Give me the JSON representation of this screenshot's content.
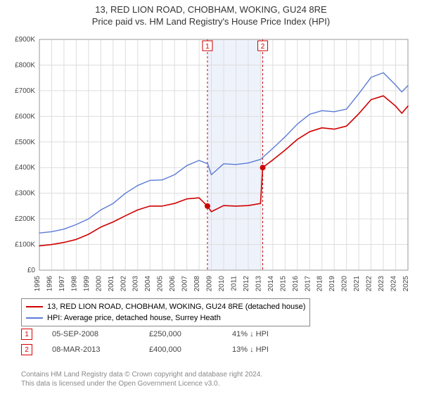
{
  "title": "13, RED LION ROAD, CHOBHAM, WOKING, GU24 8RE",
  "subtitle": "Price paid vs. HM Land Registry's House Price Index (HPI)",
  "chart": {
    "type": "line",
    "background_color": "#ffffff",
    "grid_color": "#dddddd",
    "x_years": [
      1995,
      1996,
      1997,
      1998,
      1999,
      2000,
      2001,
      2002,
      2003,
      2004,
      2005,
      2006,
      2007,
      2008,
      2009,
      2010,
      2011,
      2012,
      2013,
      2014,
      2015,
      2016,
      2017,
      2018,
      2019,
      2020,
      2021,
      2022,
      2023,
      2024,
      2025
    ],
    "y_min": 0,
    "y_max": 900000,
    "y_step": 100000,
    "y_labels": [
      "£0",
      "£100K",
      "£200K",
      "£300K",
      "£400K",
      "£500K",
      "£600K",
      "£700K",
      "£800K",
      "£900K"
    ],
    "shaded_band": {
      "x_start": 2008.7,
      "x_end": 2013.2,
      "fill": "#eef2fb"
    },
    "markers": [
      {
        "id": "1",
        "x": 2008.68,
        "y": 250000,
        "color": "#d00000"
      },
      {
        "id": "2",
        "x": 2013.18,
        "y": 400000,
        "color": "#d00000"
      }
    ],
    "marker_style": {
      "radius": 4,
      "line_dash": "3,3",
      "badge_border": "#d00000",
      "badge_fill": "#ffffff",
      "badge_text": "#d00000",
      "badge_size": 14
    },
    "series": [
      {
        "name": "property",
        "label": "13, RED LION ROAD, CHOBHAM, WOKING, GU24 8RE (detached house)",
        "color": "#d00000",
        "line_width": 1.6,
        "points": [
          [
            1995,
            95000
          ],
          [
            1996,
            100000
          ],
          [
            1997,
            108000
          ],
          [
            1998,
            120000
          ],
          [
            1999,
            140000
          ],
          [
            2000,
            168000
          ],
          [
            2001,
            188000
          ],
          [
            2002,
            212000
          ],
          [
            2003,
            235000
          ],
          [
            2004,
            250000
          ],
          [
            2005,
            250000
          ],
          [
            2006,
            260000
          ],
          [
            2007,
            278000
          ],
          [
            2008,
            282000
          ],
          [
            2008.68,
            250000
          ],
          [
            2009,
            228000
          ],
          [
            2010,
            252000
          ],
          [
            2011,
            250000
          ],
          [
            2012,
            252000
          ],
          [
            2013,
            260000
          ],
          [
            2013.18,
            400000
          ],
          [
            2014,
            430000
          ],
          [
            2015,
            468000
          ],
          [
            2016,
            510000
          ],
          [
            2017,
            540000
          ],
          [
            2018,
            555000
          ],
          [
            2019,
            550000
          ],
          [
            2020,
            562000
          ],
          [
            2021,
            610000
          ],
          [
            2022,
            665000
          ],
          [
            2023,
            680000
          ],
          [
            2024,
            640000
          ],
          [
            2024.5,
            612000
          ],
          [
            2025,
            640000
          ]
        ]
      },
      {
        "name": "hpi",
        "label": "HPI: Average price, detached house, Surrey Heath",
        "color": "#5b7bd5",
        "line_width": 1.4,
        "points": [
          [
            1995,
            145000
          ],
          [
            1996,
            150000
          ],
          [
            1997,
            160000
          ],
          [
            1998,
            178000
          ],
          [
            1999,
            200000
          ],
          [
            2000,
            235000
          ],
          [
            2001,
            260000
          ],
          [
            2002,
            300000
          ],
          [
            2003,
            330000
          ],
          [
            2004,
            350000
          ],
          [
            2005,
            352000
          ],
          [
            2006,
            372000
          ],
          [
            2007,
            408000
          ],
          [
            2008,
            428000
          ],
          [
            2008.7,
            415000
          ],
          [
            2009,
            372000
          ],
          [
            2010,
            415000
          ],
          [
            2011,
            412000
          ],
          [
            2012,
            418000
          ],
          [
            2013,
            432000
          ],
          [
            2014,
            475000
          ],
          [
            2015,
            520000
          ],
          [
            2016,
            570000
          ],
          [
            2017,
            608000
          ],
          [
            2018,
            622000
          ],
          [
            2019,
            618000
          ],
          [
            2020,
            628000
          ],
          [
            2021,
            688000
          ],
          [
            2022,
            752000
          ],
          [
            2023,
            770000
          ],
          [
            2024,
            722000
          ],
          [
            2024.5,
            695000
          ],
          [
            2025,
            720000
          ]
        ]
      }
    ]
  },
  "legend": {
    "border_color": "#888888",
    "items": [
      {
        "color": "#d00000",
        "label": "13, RED LION ROAD, CHOBHAM, WOKING, GU24 8RE (detached house)"
      },
      {
        "color": "#5b7bd5",
        "label": "HPI: Average price, detached house, Surrey Heath"
      }
    ]
  },
  "marker_table": {
    "rows": [
      {
        "id": "1",
        "date": "05-SEP-2008",
        "price": "£250,000",
        "delta": "41% ↓ HPI"
      },
      {
        "id": "2",
        "date": "08-MAR-2013",
        "price": "£400,000",
        "delta": "13% ↓ HPI"
      }
    ]
  },
  "attribution": {
    "line1": "Contains HM Land Registry data © Crown copyright and database right 2024.",
    "line2": "This data is licensed under the Open Government Licence v3.0."
  }
}
